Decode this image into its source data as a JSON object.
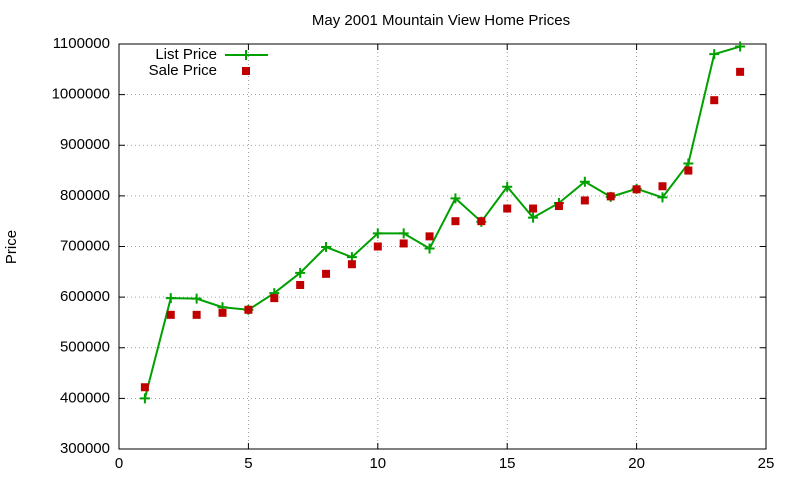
{
  "chart_data": {
    "type": "line",
    "title": "May 2001 Mountain View Home Prices",
    "y_label": "Price",
    "x": [
      1,
      2,
      3,
      4,
      5,
      6,
      7,
      8,
      9,
      10,
      11,
      12,
      13,
      14,
      15,
      16,
      17,
      18,
      19,
      20,
      21,
      22,
      23,
      24
    ],
    "series": [
      {
        "name": "List Price",
        "color": "#00a000",
        "mode": "lines+markers",
        "values": [
          400000,
          598000,
          597000,
          580000,
          575000,
          608000,
          648000,
          699000,
          679000,
          726000,
          726000,
          696000,
          795000,
          749000,
          818000,
          757000,
          786000,
          828000,
          798000,
          814000,
          797000,
          864000,
          1080000,
          1095000
        ]
      },
      {
        "name": "Sale Price",
        "color": "#c00000",
        "mode": "markers",
        "values": [
          422000,
          565000,
          565000,
          569000,
          575000,
          598000,
          624000,
          646000,
          665000,
          700000,
          706000,
          720000,
          750000,
          750000,
          775000,
          775000,
          780000,
          791000,
          799000,
          813000,
          819000,
          850000,
          989000,
          1045000
        ]
      }
    ],
    "xlim": [
      0,
      25
    ],
    "xticks": [
      0,
      5,
      10,
      15,
      20,
      25
    ],
    "ylim": [
      300000,
      1100000
    ],
    "yticks": [
      300000,
      400000,
      500000,
      600000,
      700000,
      800000,
      900000,
      1000000,
      1100000
    ],
    "grid": true,
    "legend": "top-left"
  }
}
